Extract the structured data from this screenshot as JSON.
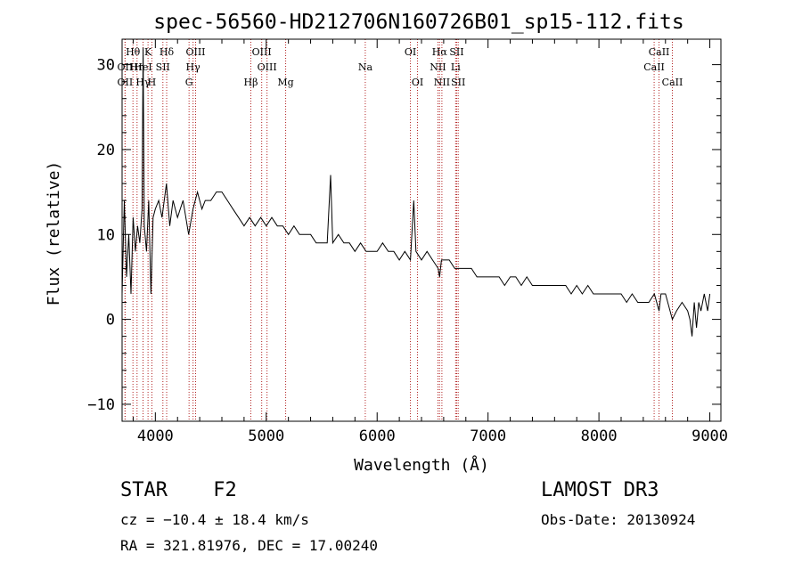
{
  "chart_data": {
    "type": "line",
    "title": "spec-56560-HD212706N160726B01_sp15-112.fits",
    "xlabel": "Wavelength (Å)",
    "ylabel": "Flux (relative)",
    "xlim": [
      3700,
      9100
    ],
    "ylim": [
      -12,
      33
    ],
    "xticks": [
      4000,
      5000,
      6000,
      7000,
      8000,
      9000
    ],
    "yticks": [
      -10,
      0,
      10,
      20,
      30
    ],
    "xtick_labels": [
      "4000",
      "5000",
      "6000",
      "7000",
      "8000",
      "9000"
    ],
    "ytick_labels": [
      "−10",
      "0",
      "10",
      "20",
      "30"
    ],
    "series": [
      {
        "name": "flux",
        "x": [
          3700,
          3720,
          3740,
          3760,
          3780,
          3800,
          3820,
          3840,
          3860,
          3880,
          3890,
          3900,
          3920,
          3940,
          3960,
          3980,
          4000,
          4030,
          4060,
          4100,
          4130,
          4160,
          4200,
          4250,
          4300,
          4340,
          4380,
          4420,
          4450,
          4500,
          4550,
          4600,
          4650,
          4700,
          4750,
          4800,
          4850,
          4900,
          4950,
          5000,
          5050,
          5100,
          5150,
          5200,
          5250,
          5300,
          5350,
          5400,
          5450,
          5500,
          5550,
          5580,
          5600,
          5650,
          5700,
          5750,
          5800,
          5850,
          5900,
          5950,
          6000,
          6050,
          6100,
          6150,
          6200,
          6250,
          6300,
          6330,
          6350,
          6400,
          6450,
          6500,
          6550,
          6563,
          6580,
          6600,
          6650,
          6700,
          6750,
          6800,
          6850,
          6900,
          6950,
          7000,
          7050,
          7100,
          7150,
          7200,
          7250,
          7300,
          7350,
          7400,
          7450,
          7500,
          7550,
          7600,
          7650,
          7700,
          7750,
          7800,
          7850,
          7900,
          7950,
          8000,
          8050,
          8100,
          8150,
          8200,
          8250,
          8300,
          8350,
          8400,
          8450,
          8500,
          8542,
          8560,
          8600,
          8662,
          8700,
          8750,
          8800,
          8820,
          8840,
          8860,
          8880,
          8900,
          8920,
          8950,
          8980,
          9000
        ],
        "y": [
          3,
          14,
          5,
          10,
          3,
          12,
          8,
          11,
          9,
          13,
          32,
          11,
          8,
          14,
          3,
          12,
          13,
          14,
          12,
          16,
          11,
          14,
          12,
          14,
          10,
          13,
          15,
          13,
          14,
          14,
          15,
          15,
          14,
          13,
          12,
          11,
          12,
          11,
          12,
          11,
          12,
          11,
          11,
          10,
          11,
          10,
          10,
          10,
          9,
          9,
          9,
          17,
          9,
          10,
          9,
          9,
          8,
          9,
          8,
          8,
          8,
          9,
          8,
          8,
          7,
          8,
          7,
          14,
          8,
          7,
          8,
          7,
          6,
          5,
          7,
          7,
          7,
          6,
          6,
          6,
          6,
          5,
          5,
          5,
          5,
          5,
          4,
          5,
          5,
          4,
          5,
          4,
          4,
          4,
          4,
          4,
          4,
          4,
          3,
          4,
          3,
          4,
          3,
          3,
          3,
          3,
          3,
          3,
          2,
          3,
          2,
          2,
          2,
          3,
          1,
          3,
          3,
          0,
          1,
          2,
          1,
          0,
          -2,
          2,
          -1,
          2,
          1,
          3,
          1,
          3
        ]
      }
    ],
    "lines": [
      {
        "label": "Hθ",
        "x": 3798,
        "row": 0
      },
      {
        "label": "OII",
        "x": 3727,
        "row": 1
      },
      {
        "label": "OII",
        "x": 3727,
        "row": 2
      },
      {
        "label": "Hη",
        "x": 3835,
        "row": 1
      },
      {
        "label": "Hγ",
        "x": 3889,
        "row": 2
      },
      {
        "label": "K",
        "x": 3934,
        "row": 0
      },
      {
        "label": "H",
        "x": 3969,
        "row": 2
      },
      {
        "label": "HeI",
        "x": 3889,
        "row": 1
      },
      {
        "label": "SII",
        "x": 4068,
        "row": 1
      },
      {
        "label": "Hδ",
        "x": 4102,
        "row": 0
      },
      {
        "label": "OIII",
        "x": 4363,
        "row": 0
      },
      {
        "label": "Hγ",
        "x": 4340,
        "row": 1
      },
      {
        "label": "G",
        "x": 4304,
        "row": 2
      },
      {
        "label": "OIII",
        "x": 4959,
        "row": 0
      },
      {
        "label": "OIII",
        "x": 5007,
        "row": 1
      },
      {
        "label": "Hβ",
        "x": 4861,
        "row": 2
      },
      {
        "label": "Mg",
        "x": 5175,
        "row": 2
      },
      {
        "label": "Na",
        "x": 5893,
        "row": 1
      },
      {
        "label": "OI",
        "x": 6300,
        "row": 0
      },
      {
        "label": "OI",
        "x": 6364,
        "row": 2
      },
      {
        "label": "Hα",
        "x": 6563,
        "row": 0
      },
      {
        "label": "NII",
        "x": 6548,
        "row": 1
      },
      {
        "label": "NII",
        "x": 6584,
        "row": 2
      },
      {
        "label": "SII",
        "x": 6717,
        "row": 0
      },
      {
        "label": "Li",
        "x": 6708,
        "row": 1
      },
      {
        "label": "SII",
        "x": 6731,
        "row": 2
      },
      {
        "label": "CaII",
        "x": 8542,
        "row": 0
      },
      {
        "label": "CaII",
        "x": 8498,
        "row": 1
      },
      {
        "label": "CaII",
        "x": 8662,
        "row": 2
      }
    ]
  },
  "info": {
    "object_class": "STAR",
    "subclass": "F2",
    "survey": "LAMOST DR3",
    "redshift": "cz = −10.4 ± 18.4 km/s",
    "obs_date": "Obs-Date: 20130924",
    "coords": "RA = 321.81976, DEC =  17.00240"
  },
  "colors": {
    "spectrum": "#000000",
    "line_markers": "#b22222",
    "axes": "#000000"
  }
}
